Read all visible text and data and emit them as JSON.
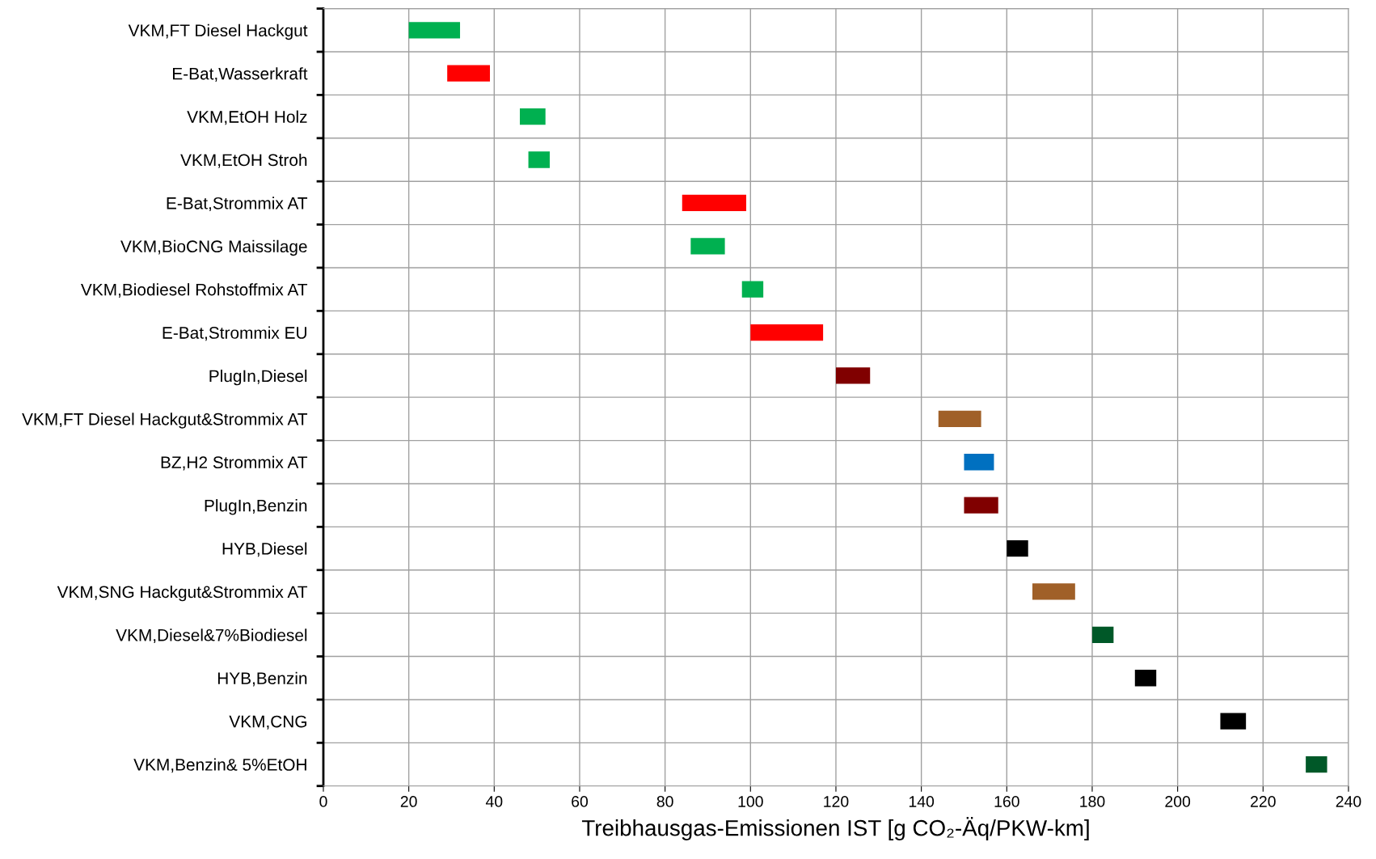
{
  "chart_data": {
    "type": "bar",
    "orientation": "horizontal",
    "xlabel": "Treibhausgas-Emissionen IST [g CO₂-Äq/PKW-km]",
    "categories": [
      "VKM,FT Diesel Hackgut",
      "E-Bat,Wasserkraft",
      "VKM,EtOH Holz",
      "VKM,EtOH Stroh",
      "E-Bat,Strommix AT",
      "VKM,BioCNG Maissilage",
      "VKM,Biodiesel Rohstoffmix AT",
      "E-Bat,Strommix EU",
      "PlugIn,Diesel",
      "VKM,FT Diesel Hackgut&Strommix AT",
      "BZ,H2 Strommix AT",
      "PlugIn,Benzin",
      "HYB,Diesel",
      "VKM,SNG Hackgut&Strommix AT",
      "VKM,Diesel&7%Biodiesel",
      "HYB,Benzin",
      "VKM,CNG",
      "VKM,Benzin& 5%EtOH"
    ],
    "base": [
      20,
      29,
      46,
      48,
      84,
      86,
      98,
      100,
      120,
      144,
      150,
      150,
      160,
      166,
      180,
      190,
      210,
      230
    ],
    "values": [
      12,
      10,
      6,
      5,
      15,
      8,
      5,
      17,
      8,
      10,
      7,
      8,
      5,
      10,
      5,
      5,
      6,
      5
    ],
    "colors": [
      "#00b050",
      "#ff0000",
      "#00b050",
      "#00b050",
      "#ff0000",
      "#00b050",
      "#00b050",
      "#ff0000",
      "#800000",
      "#a06028",
      "#0070c0",
      "#800000",
      "#000000",
      "#a06028",
      "#005828",
      "#000000",
      "#000000",
      "#005828"
    ],
    "xlim": [
      0,
      240
    ],
    "xticks": [
      0,
      20,
      40,
      60,
      80,
      100,
      120,
      140,
      160,
      180,
      200,
      220,
      240
    ],
    "grid": true
  }
}
